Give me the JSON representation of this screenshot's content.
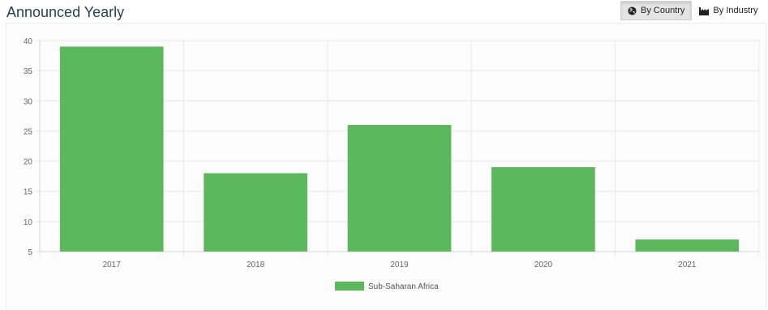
{
  "header": {
    "title": "Announced Yearly"
  },
  "toggles": [
    {
      "label": "By Country",
      "icon": "globe-icon",
      "active": true
    },
    {
      "label": "By Industry",
      "icon": "factory-icon",
      "active": false
    }
  ],
  "colors": {
    "bar": "#5cb85c",
    "grid": "#e8e8e8",
    "axis_text": "#666666"
  },
  "chart_data": {
    "type": "bar",
    "categories": [
      "2017",
      "2018",
      "2019",
      "2020",
      "2021"
    ],
    "series": [
      {
        "name": "Sub-Saharan Africa",
        "values": [
          39,
          18,
          26,
          19,
          7
        ]
      }
    ],
    "ylim": [
      5,
      40
    ],
    "yticks": [
      5,
      10,
      15,
      20,
      25,
      30,
      35,
      40
    ],
    "grid": true,
    "legend": "bottom"
  }
}
